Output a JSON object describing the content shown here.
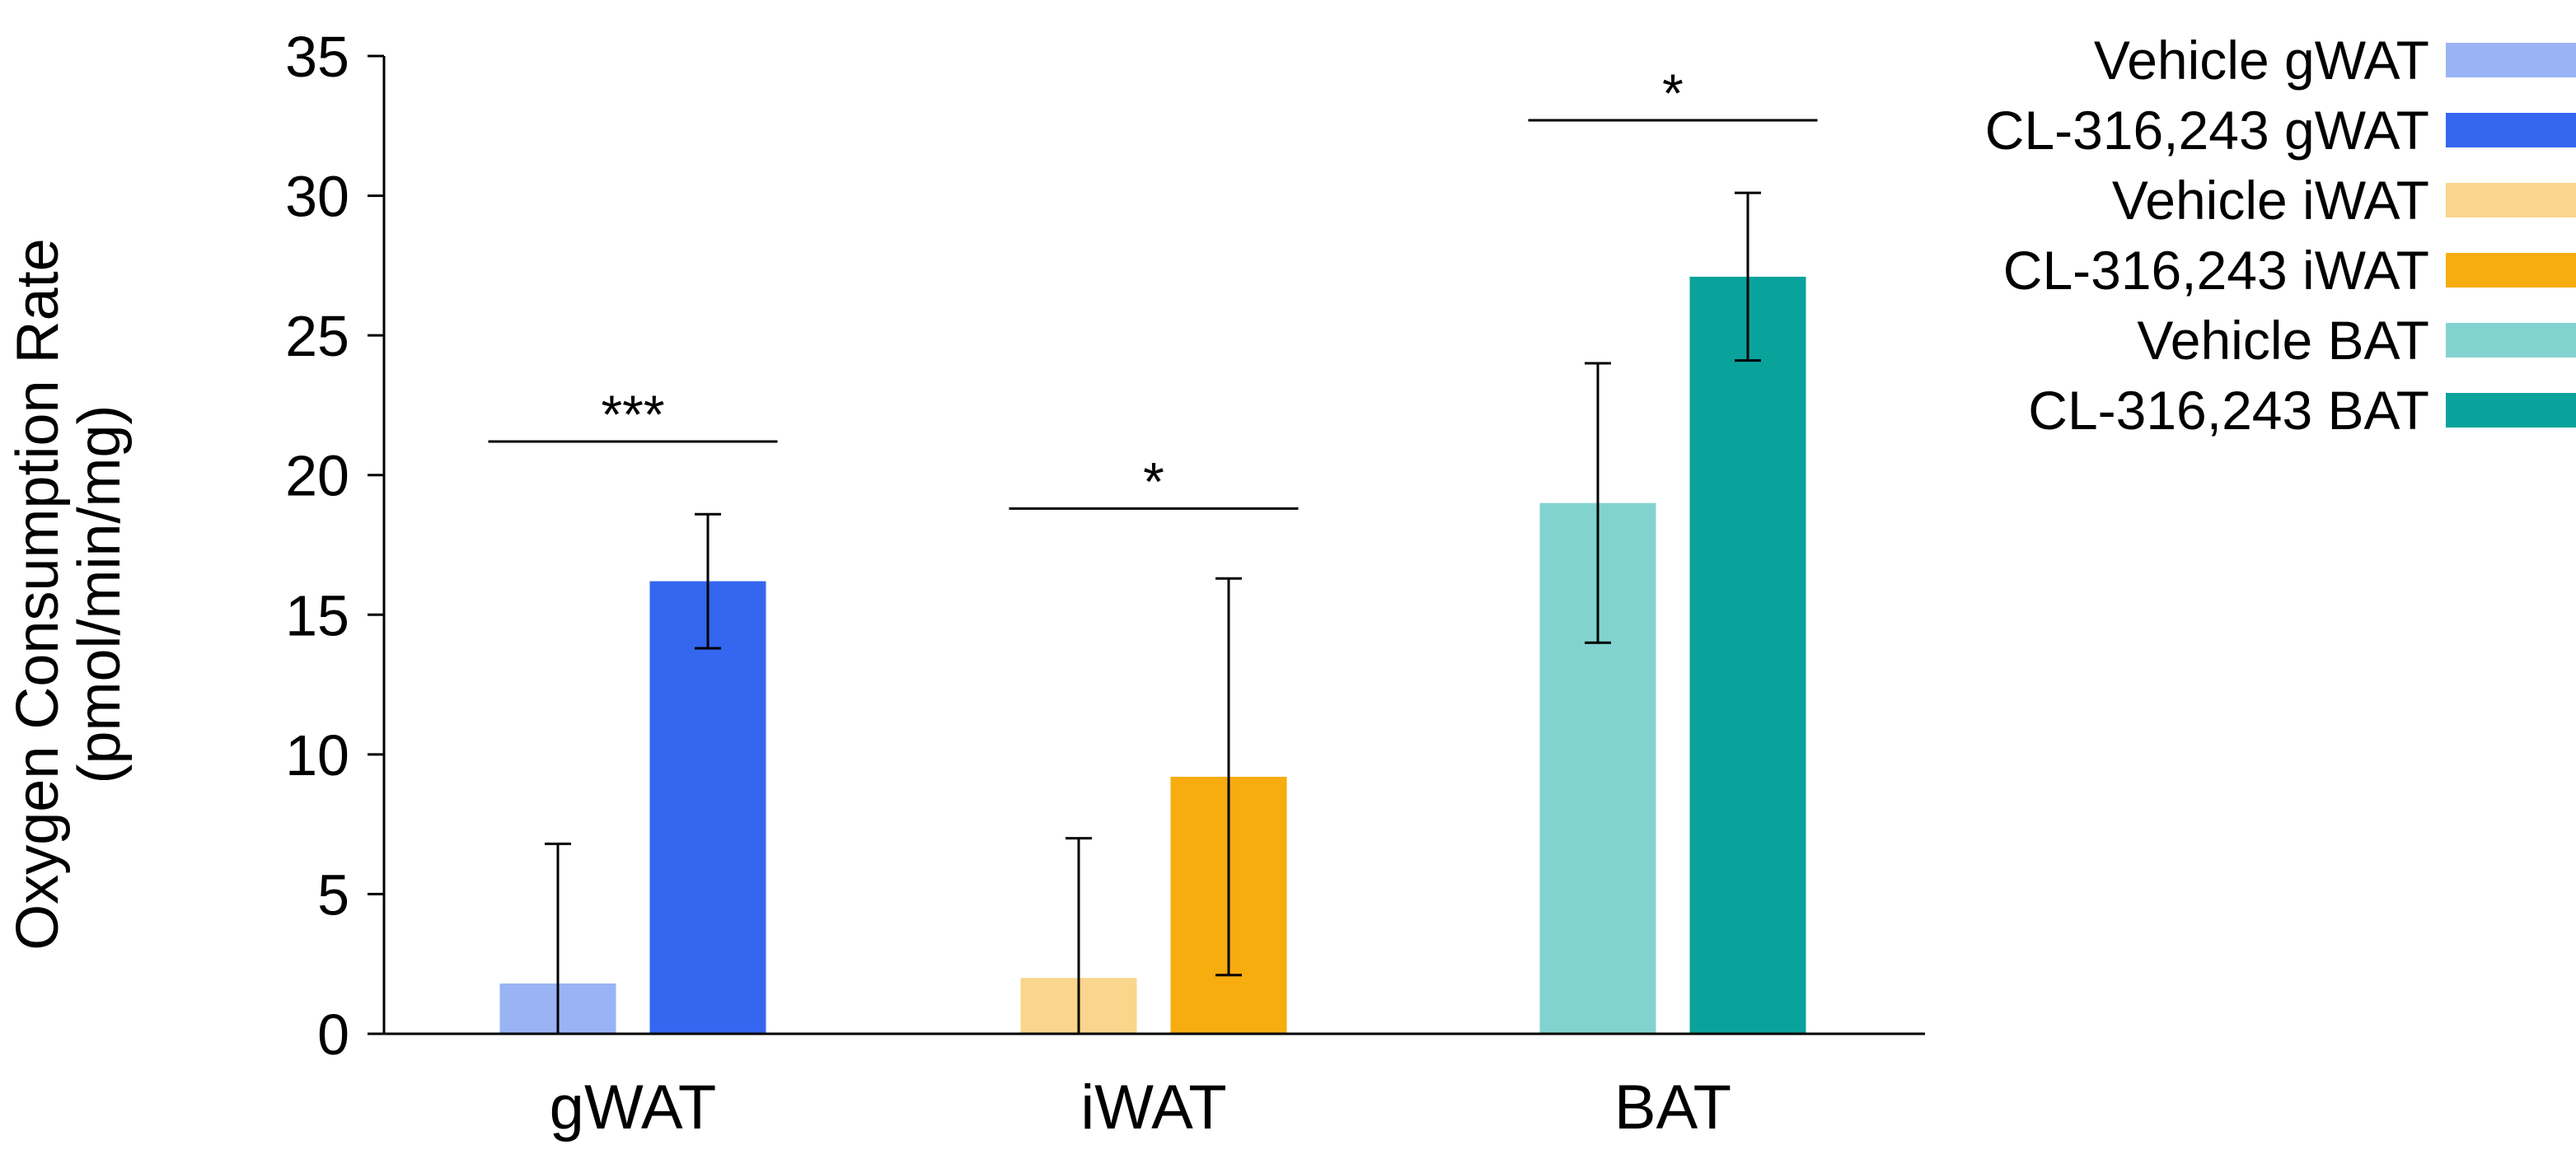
{
  "chart_data": {
    "type": "bar",
    "title": "",
    "xlabel": "",
    "ylabel_line1": "Oxygen Consumption Rate",
    "ylabel_line2": "(pmol/min/mg)",
    "ylim": [
      0,
      35
    ],
    "yticks": [
      0,
      5,
      10,
      15,
      20,
      25,
      30,
      35
    ],
    "categories": [
      "gWAT",
      "iWAT",
      "BAT"
    ],
    "bars": [
      {
        "name": "Vehicle gWAT",
        "category": "gWAT",
        "slot": 0,
        "value": 1.8,
        "error": 5.0,
        "color": "#99b3f5"
      },
      {
        "name": "CL-316,243 gWAT",
        "category": "gWAT",
        "slot": 1,
        "value": 16.2,
        "error": 2.4,
        "color": "#3466f0"
      },
      {
        "name": "Vehicle iWAT",
        "category": "iWAT",
        "slot": 0,
        "value": 2.0,
        "error": 5.0,
        "color": "#fad58c"
      },
      {
        "name": "CL-316,243 iWAT",
        "category": "iWAT",
        "slot": 1,
        "value": 9.2,
        "error": 7.1,
        "color": "#f7ac0f"
      },
      {
        "name": "Vehicle BAT",
        "category": "BAT",
        "slot": 0,
        "value": 19.0,
        "error": 5.0,
        "color": "#82d3d0"
      },
      {
        "name": "CL-316,243 BAT",
        "category": "BAT",
        "slot": 1,
        "value": 27.1,
        "error": 3.0,
        "color": "#0aa39c"
      }
    ],
    "significance": [
      {
        "category": "gWAT",
        "label": "***",
        "level": 21.2
      },
      {
        "category": "iWAT",
        "label": "*",
        "level": 18.8
      },
      {
        "category": "BAT",
        "label": "*",
        "level": 32.7
      }
    ],
    "legend": {
      "placement": "top-right",
      "entries": [
        "Vehicle gWAT",
        "CL-316,243 gWAT",
        "Vehicle iWAT",
        "CL-316,243 iWAT",
        "Vehicle BAT",
        "CL-316,243 BAT"
      ]
    }
  }
}
